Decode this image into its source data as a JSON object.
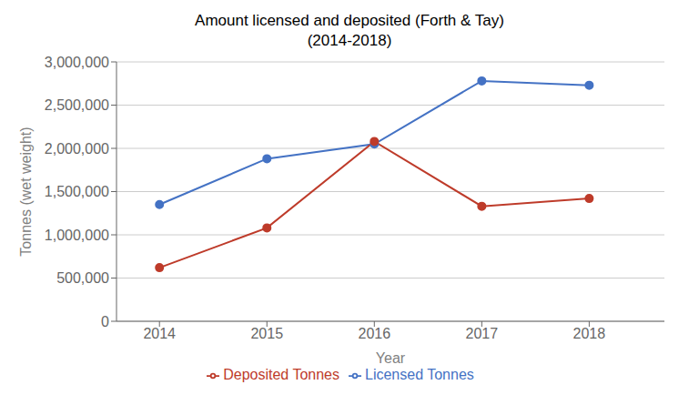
{
  "chart_data": {
    "type": "line",
    "title": "Amount licensed and deposited (Forth & Tay)\n(2014-2018)",
    "xlabel": "Year",
    "ylabel": "Tonnes (wet weight)",
    "x": [
      2014,
      2015,
      2016,
      2017,
      2018
    ],
    "series": [
      {
        "name": "Licensed Tonnes",
        "color": "#4472C4",
        "marker": "circle",
        "values": [
          1350000,
          1880000,
          2050000,
          2780000,
          2730000
        ]
      },
      {
        "name": "Deposited Tonnes",
        "color": "#BE3B2A",
        "marker": "circle",
        "values": [
          620000,
          1080000,
          2080000,
          1330000,
          1420000
        ]
      }
    ],
    "xlim": [
      2013.6,
      2018.7
    ],
    "xticks": [
      2014,
      2015,
      2016,
      2017,
      2018
    ],
    "ylim": [
      0,
      3000000
    ],
    "yticks": [
      0,
      {
        "value": 500000,
        "label": "500,000"
      },
      {
        "value": 1000000,
        "label": "1,000,000"
      },
      {
        "value": 1500000,
        "label": "1,500,000"
      },
      {
        "value": 2000000,
        "label": "2,000,000"
      },
      {
        "value": 2500000,
        "label": "2,500,000"
      },
      {
        "value": 3000000,
        "label": "3,000,000"
      }
    ],
    "grid": true,
    "legend": "bottom"
  }
}
